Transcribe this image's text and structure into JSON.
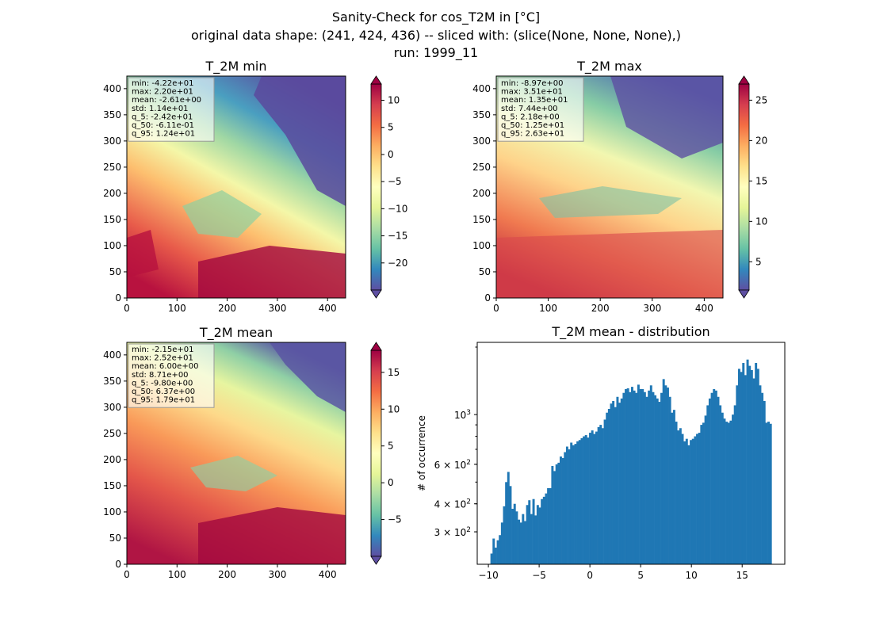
{
  "figure": {
    "title_lines": [
      "Sanity-Check for cos_T2M in [°C]",
      "original data shape: (241, 424, 436) -- sliced with: (slice(None, None, None),)",
      "run: 1999_11"
    ]
  },
  "chart_data": [
    {
      "type": "heatmap",
      "title": "T_2M min",
      "xlim": [
        0,
        436
      ],
      "ylim": [
        0,
        424
      ],
      "xticks": [
        "0",
        "100",
        "200",
        "300",
        "400"
      ],
      "yticks": [
        "0",
        "50",
        "100",
        "150",
        "200",
        "250",
        "300",
        "350",
        "400"
      ],
      "colormap": "Spectral_r",
      "colorbar": {
        "range": [
          -25,
          13
        ],
        "ticks": [
          "10",
          "5",
          "0",
          "−5",
          "−10",
          "−15",
          "−20"
        ],
        "tick_values": [
          10,
          5,
          0,
          -5,
          -10,
          -15,
          -20
        ],
        "extend": "both"
      },
      "stats": [
        "min: -4.22e+01",
        "max: 2.20e+01",
        "mean: -2.61e+00",
        "std: 1.14e+01",
        "q_5: -2.42e+01",
        "q_50: -6.11e-01",
        "q_95: 1.24e+01"
      ]
    },
    {
      "type": "heatmap",
      "title": "T_2M max",
      "xlim": [
        0,
        436
      ],
      "ylim": [
        0,
        424
      ],
      "xticks": [
        "0",
        "100",
        "200",
        "300",
        "400"
      ],
      "yticks": [
        "0",
        "50",
        "100",
        "150",
        "200",
        "250",
        "300",
        "350",
        "400"
      ],
      "colormap": "Spectral_r",
      "colorbar": {
        "range": [
          1.5,
          27
        ],
        "ticks": [
          "25",
          "20",
          "15",
          "10",
          "5"
        ],
        "tick_values": [
          25,
          20,
          15,
          10,
          5
        ],
        "extend": "both"
      },
      "stats": [
        "min: -8.97e+00",
        "max: 3.51e+01",
        "mean: 1.35e+01",
        "std: 7.44e+00",
        "q_5: 2.18e+00",
        "q_50: 1.25e+01",
        "q_95: 2.63e+01"
      ]
    },
    {
      "type": "heatmap",
      "title": "T_2M mean",
      "xlim": [
        0,
        436
      ],
      "ylim": [
        0,
        424
      ],
      "xticks": [
        "0",
        "100",
        "200",
        "300",
        "400"
      ],
      "yticks": [
        "0",
        "50",
        "100",
        "150",
        "200",
        "250",
        "300",
        "350",
        "400"
      ],
      "colormap": "Spectral_r",
      "colorbar": {
        "range": [
          -10,
          18
        ],
        "ticks": [
          "15",
          "10",
          "5",
          "0",
          "−5"
        ],
        "tick_values": [
          15,
          10,
          5,
          0,
          -5
        ],
        "extend": "both"
      },
      "stats": [
        "min: -2.15e+01",
        "max: 2.52e+01",
        "mean: 6.00e+00",
        "std: 8.71e+00",
        "q_5: -9.80e+00",
        "q_50: 6.37e+00",
        "q_95: 1.79e+01"
      ]
    },
    {
      "type": "bar",
      "title": "T_2M mean - distribution",
      "ylabel": "# of occurrence",
      "xlabel": "",
      "yscale": "log",
      "xlim": [
        -11.1,
        19.2
      ],
      "ylim": [
        215,
        2100
      ],
      "xticks": [
        "−10",
        "−5",
        "0",
        "5",
        "10",
        "15"
      ],
      "xtick_values": [
        -10,
        -5,
        0,
        5,
        10,
        15
      ],
      "yticks": [
        {
          "value": 1000,
          "base": "10",
          "exp": "3",
          "coef": ""
        },
        {
          "value": 600,
          "base": "10",
          "exp": "2",
          "coef": "6 × "
        },
        {
          "value": 400,
          "base": "10",
          "exp": "2",
          "coef": "4 × "
        },
        {
          "value": 300,
          "base": "10",
          "exp": "2",
          "coef": "3 × "
        }
      ],
      "bin_start": -9.8,
      "bin_end": 17.9,
      "bar_color": "#1f77b4",
      "values": [
        240,
        280,
        255,
        275,
        290,
        330,
        390,
        500,
        555,
        480,
        380,
        400,
        370,
        340,
        330,
        360,
        335,
        395,
        415,
        360,
        420,
        355,
        395,
        385,
        420,
        430,
        445,
        470,
        470,
        590,
        560,
        600,
        610,
        650,
        640,
        680,
        720,
        700,
        750,
        730,
        740,
        760,
        770,
        785,
        800,
        810,
        790,
        830,
        850,
        820,
        840,
        880,
        900,
        870,
        950,
        1020,
        1060,
        1120,
        1150,
        1080,
        1200,
        1130,
        1180,
        1250,
        1300,
        1310,
        1260,
        1330,
        1280,
        1250,
        1360,
        1300,
        1300,
        1260,
        1200,
        1280,
        1350,
        1260,
        1220,
        1180,
        1140,
        1250,
        1440,
        1350,
        1320,
        1200,
        1020,
        1050,
        930,
        850,
        870,
        820,
        760,
        780,
        730,
        770,
        780,
        800,
        820,
        830,
        900,
        920,
        990,
        1100,
        1180,
        1250,
        1300,
        1280,
        1200,
        1100,
        1020,
        960,
        930,
        920,
        940,
        1000,
        1100,
        1350,
        1600,
        1550,
        1700,
        1500,
        1760,
        1650,
        1580,
        1450,
        1700,
        1600,
        1350,
        1250,
        1150,
        920,
        930,
        910
      ]
    }
  ]
}
